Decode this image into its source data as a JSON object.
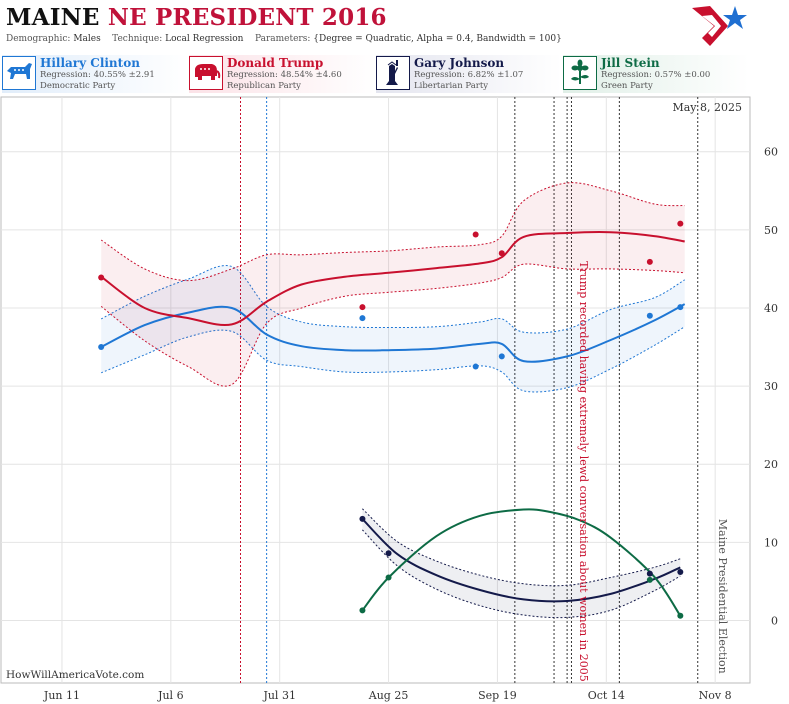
{
  "header": {
    "state": "MAINE",
    "race": "NE PRESIDENT 2016",
    "demographic_label": "Demographic:",
    "demographic": "Males",
    "technique_label": "Technique:",
    "technique": "Local Regression",
    "parameters_label": "Parameters:",
    "parameters": "{Degree = Quadratic, Alpha = 0.4, Bandwidth = 100}"
  },
  "candidates": [
    {
      "name": "Hillary Clinton",
      "regression": "Regression: 40.55% ±2.91",
      "party": "Democratic Party",
      "color": "#1f77d4",
      "icon": "donkey-icon"
    },
    {
      "name": "Donald Trump",
      "regression": "Regression: 48.54% ±4.60",
      "party": "Republican Party",
      "color": "#c8102e",
      "icon": "elephant-icon"
    },
    {
      "name": "Gary Johnson",
      "regression": "Regression: 6.82% ±1.07",
      "party": "Libertarian Party",
      "color": "#141a4a",
      "icon": "statue-of-liberty-icon"
    },
    {
      "name": "Jill Stein",
      "regression": "Regression: 0.57% ±0.00",
      "party": "Green Party",
      "color": "#0d6b45",
      "icon": "flower-icon"
    }
  ],
  "chart_data": {
    "type": "line",
    "date_label": "May 8, 2025",
    "watermark": "HowWillAmericaVote.com",
    "x_ticks": [
      "Jun 11",
      "Jul 6",
      "Jul 31",
      "Aug 25",
      "Sep 19",
      "Oct 14",
      "Nov 8"
    ],
    "x_tick_dates": [
      "2016-06-11",
      "2016-07-06",
      "2016-07-31",
      "2016-08-25",
      "2016-09-19",
      "2016-10-14",
      "2016-11-08"
    ],
    "y_ticks": [
      0,
      10,
      20,
      30,
      40,
      50,
      60
    ],
    "ylim": [
      -8,
      67
    ],
    "xlim": [
      "2016-05-28",
      "2016-11-16"
    ],
    "grid": true,
    "annotations": [
      {
        "text": "Trump recorded having extremely lewd conversation about women in 2005",
        "date": "2016-10-07",
        "y": 46,
        "color": "#c8102e"
      },
      {
        "text": "Maine Presidential Election",
        "date": "2016-11-08",
        "y": 13,
        "color": "#555555"
      }
    ],
    "vlines": [
      {
        "date": "2016-07-22",
        "color": "#c8102e"
      },
      {
        "date": "2016-07-28",
        "color": "#1f77d4"
      },
      {
        "date": "2016-09-23",
        "color": "#333333"
      },
      {
        "date": "2016-10-02",
        "color": "#333333"
      },
      {
        "date": "2016-10-05",
        "color": "#333333"
      },
      {
        "date": "2016-10-06",
        "color": "#333333"
      },
      {
        "date": "2016-10-17",
        "color": "#333333"
      },
      {
        "date": "2016-11-04",
        "color": "#333333"
      }
    ],
    "series": [
      {
        "name": "Hillary Clinton",
        "color": "#1f77d4",
        "x": [
          "2016-06-20",
          "2016-06-30",
          "2016-07-10",
          "2016-07-20",
          "2016-07-28",
          "2016-08-05",
          "2016-08-15",
          "2016-08-25",
          "2016-09-05",
          "2016-09-15",
          "2016-09-20",
          "2016-09-25",
          "2016-10-05",
          "2016-10-15",
          "2016-10-25",
          "2016-11-01"
        ],
        "y": [
          35.0,
          37.8,
          39.4,
          40.0,
          36.6,
          35.1,
          34.6,
          34.6,
          34.8,
          35.4,
          35.4,
          33.2,
          33.8,
          35.9,
          38.4,
          40.5
        ],
        "lower": [
          31.7,
          34.0,
          36.3,
          37.0,
          33.3,
          32.5,
          31.8,
          31.8,
          32.1,
          32.6,
          31.8,
          29.4,
          29.8,
          32.2,
          35.2,
          37.6
        ],
        "upper": [
          38.6,
          41.5,
          43.7,
          45.3,
          40.2,
          38.2,
          37.6,
          37.5,
          37.6,
          38.2,
          38.6,
          36.9,
          37.3,
          39.8,
          41.3,
          43.6
        ],
        "points_x": [
          "2016-06-20",
          "2016-08-19",
          "2016-09-14",
          "2016-09-20",
          "2016-10-24",
          "2016-10-31"
        ],
        "points_y": [
          35.0,
          38.7,
          32.5,
          33.8,
          39.0,
          40.1
        ]
      },
      {
        "name": "Donald Trump",
        "color": "#c8102e",
        "x": [
          "2016-06-20",
          "2016-06-30",
          "2016-07-10",
          "2016-07-20",
          "2016-07-28",
          "2016-08-05",
          "2016-08-15",
          "2016-08-25",
          "2016-09-05",
          "2016-09-15",
          "2016-09-20",
          "2016-09-25",
          "2016-10-05",
          "2016-10-15",
          "2016-10-25",
          "2016-11-01"
        ],
        "y": [
          44.0,
          40.0,
          38.7,
          37.9,
          40.8,
          43.0,
          44.0,
          44.5,
          45.1,
          45.7,
          46.5,
          49.1,
          49.6,
          49.7,
          49.2,
          48.5
        ],
        "lower": [
          40.2,
          35.8,
          32.5,
          30.2,
          38.0,
          40.0,
          41.5,
          42.0,
          42.5,
          43.2,
          43.9,
          45.6,
          45.0,
          45.0,
          44.8,
          44.5
        ],
        "upper": [
          48.7,
          45.0,
          43.5,
          45.0,
          46.8,
          46.8,
          47.1,
          47.3,
          47.8,
          48.1,
          49.2,
          53.7,
          56.0,
          55.0,
          53.3,
          53.1
        ],
        "points_x": [
          "2016-06-20",
          "2016-08-19",
          "2016-09-14",
          "2016-09-20",
          "2016-10-24",
          "2016-10-31"
        ],
        "points_y": [
          43.9,
          40.1,
          49.4,
          47.0,
          45.9,
          50.8
        ]
      },
      {
        "name": "Gary Johnson",
        "color": "#141a4a",
        "x": [
          "2016-08-19",
          "2016-08-27",
          "2016-09-05",
          "2016-09-15",
          "2016-09-25",
          "2016-10-05",
          "2016-10-15",
          "2016-10-25",
          "2016-10-31"
        ],
        "y": [
          13.0,
          8.5,
          5.8,
          3.9,
          2.7,
          2.5,
          3.4,
          5.3,
          6.8
        ],
        "lower": [
          11.6,
          7.0,
          4.0,
          1.9,
          0.7,
          0.4,
          1.3,
          3.8,
          5.7
        ],
        "upper": [
          14.3,
          10.1,
          7.6,
          5.8,
          4.7,
          4.5,
          5.5,
          6.8,
          7.9
        ],
        "points_x": [
          "2016-08-19",
          "2016-08-25",
          "2016-10-24",
          "2016-10-31"
        ],
        "points_y": [
          13.0,
          8.6,
          6.0,
          6.2
        ]
      },
      {
        "name": "Jill Stein",
        "color": "#0d6b45",
        "x": [
          "2016-08-19",
          "2016-08-25",
          "2016-09-05",
          "2016-09-15",
          "2016-09-25",
          "2016-10-01",
          "2016-10-08",
          "2016-10-15",
          "2016-10-25",
          "2016-10-31"
        ],
        "y": [
          1.3,
          5.5,
          10.8,
          13.4,
          14.2,
          13.9,
          12.8,
          10.6,
          5.6,
          0.6
        ],
        "points_x": [
          "2016-08-19",
          "2016-08-25",
          "2016-10-24",
          "2016-10-31"
        ],
        "points_y": [
          1.3,
          5.5,
          5.2,
          0.6
        ]
      }
    ]
  }
}
